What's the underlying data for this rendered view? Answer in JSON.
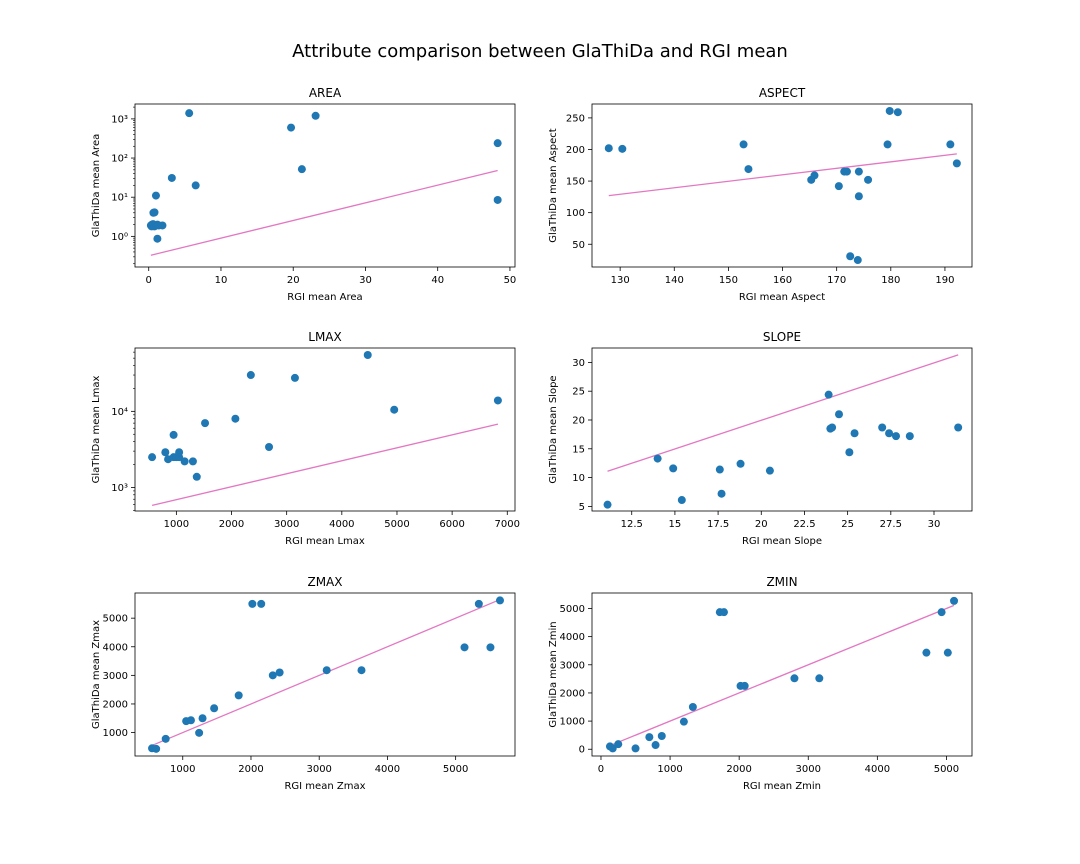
{
  "figure": {
    "title": "Attribute comparison between GlaThiDa and RGI mean"
  },
  "colors": {
    "points": "#1f77b4",
    "line": "#e377c2",
    "axes": "#000000"
  },
  "chart_data": [
    {
      "type": "scatter",
      "title": "AREA",
      "xlabel": "RGI mean Area",
      "ylabel": "GlaThiDa mean Area",
      "xscale": "linear",
      "yscale": "log",
      "xlim": [
        -1.9,
        50.7
      ],
      "ylim": [
        0.165,
        2400
      ],
      "xticks": [
        0,
        10,
        20,
        30,
        40,
        50
      ],
      "yticks": [
        1,
        10,
        100,
        1000
      ],
      "yticklabels": [
        "10⁰",
        "10¹",
        "10²",
        "10³"
      ],
      "points": [
        [
          0.3,
          1.9
        ],
        [
          0.4,
          1.8
        ],
        [
          0.45,
          2.0
        ],
        [
          0.55,
          1.95
        ],
        [
          0.6,
          2.05
        ],
        [
          0.8,
          1.8
        ],
        [
          1.0,
          1.9
        ],
        [
          1.2,
          2.0
        ],
        [
          1.4,
          1.9
        ],
        [
          1.9,
          1.9
        ],
        [
          0.65,
          4.0
        ],
        [
          0.8,
          4.1
        ],
        [
          1.0,
          11.0
        ],
        [
          1.2,
          0.87
        ],
        [
          3.2,
          31
        ],
        [
          5.6,
          1400
        ],
        [
          6.5,
          20
        ],
        [
          19.7,
          600
        ],
        [
          21.2,
          52
        ],
        [
          23.1,
          1200
        ],
        [
          48.3,
          240
        ],
        [
          48.3,
          8.5
        ]
      ],
      "line": [
        [
          0.3,
          0.33
        ],
        [
          48.3,
          48
        ]
      ]
    },
    {
      "type": "scatter",
      "title": "ASPECT",
      "xlabel": "RGI mean Aspect",
      "ylabel": "GlaThiDa mean Aspect",
      "xscale": "linear",
      "yscale": "linear",
      "xlim": [
        124.8,
        195.0
      ],
      "ylim": [
        14,
        272
      ],
      "xticks": [
        130,
        140,
        150,
        160,
        170,
        180,
        190
      ],
      "yticks": [
        50,
        100,
        150,
        200,
        250
      ],
      "points": [
        [
          127.9,
          202
        ],
        [
          130.4,
          201
        ],
        [
          152.8,
          208
        ],
        [
          153.7,
          169
        ],
        [
          165.3,
          152
        ],
        [
          165.9,
          159
        ],
        [
          170.4,
          142
        ],
        [
          171.4,
          165
        ],
        [
          171.9,
          165
        ],
        [
          172.5,
          31
        ],
        [
          173.9,
          25
        ],
        [
          174.1,
          165
        ],
        [
          174.1,
          126
        ],
        [
          175.8,
          152
        ],
        [
          179.4,
          208
        ],
        [
          179.8,
          261
        ],
        [
          181.3,
          259
        ],
        [
          191.0,
          208
        ],
        [
          192.2,
          178
        ]
      ],
      "line": [
        [
          127.9,
          127
        ],
        [
          192.2,
          193
        ]
      ]
    },
    {
      "type": "scatter",
      "title": "LMAX",
      "xlabel": "RGI mean Lmax",
      "ylabel": "GlaThiDa mean Lmax",
      "xscale": "linear",
      "yscale": "log",
      "xlim": [
        250,
        7140
      ],
      "ylim": [
        490,
        68000
      ],
      "xticks": [
        1000,
        2000,
        3000,
        4000,
        5000,
        6000,
        7000
      ],
      "yticks": [
        1000,
        10000
      ],
      "yticklabels": [
        "10³",
        "10⁴"
      ],
      "points": [
        [
          560,
          2500
        ],
        [
          800,
          2900
        ],
        [
          850,
          2350
        ],
        [
          950,
          2500
        ],
        [
          1000,
          2500
        ],
        [
          1050,
          2500
        ],
        [
          950,
          4900
        ],
        [
          1050,
          2900
        ],
        [
          1150,
          2200
        ],
        [
          1300,
          2200
        ],
        [
          1370,
          1380
        ],
        [
          1520,
          7000
        ],
        [
          2070,
          8000
        ],
        [
          2350,
          30000
        ],
        [
          2680,
          3400
        ],
        [
          3150,
          27500
        ],
        [
          4470,
          55000
        ],
        [
          4950,
          10500
        ],
        [
          6830,
          13900
        ]
      ],
      "line": [
        [
          560,
          580
        ],
        [
          6830,
          6800
        ]
      ]
    },
    {
      "type": "scatter",
      "title": "SLOPE",
      "xlabel": "RGI mean Slope",
      "ylabel": "GlaThiDa mean Slope",
      "xscale": "linear",
      "yscale": "linear",
      "xlim": [
        10.2,
        32.2
      ],
      "ylim": [
        4.2,
        32.5
      ],
      "xticks": [
        12.5,
        15.0,
        17.5,
        20.0,
        22.5,
        25.0,
        27.5,
        30.0
      ],
      "yticks": [
        5,
        10,
        15,
        20,
        25,
        30
      ],
      "points": [
        [
          11.1,
          5.3
        ],
        [
          14.0,
          13.3
        ],
        [
          14.9,
          11.6
        ],
        [
          15.4,
          6.1
        ],
        [
          17.6,
          11.4
        ],
        [
          17.7,
          7.2
        ],
        [
          18.8,
          12.4
        ],
        [
          20.5,
          11.2
        ],
        [
          23.9,
          24.4
        ],
        [
          24.0,
          18.5
        ],
        [
          24.1,
          18.7
        ],
        [
          24.5,
          21.0
        ],
        [
          25.1,
          14.4
        ],
        [
          25.4,
          17.7
        ],
        [
          27.0,
          18.7
        ],
        [
          27.4,
          17.7
        ],
        [
          27.8,
          17.2
        ],
        [
          28.6,
          17.2
        ],
        [
          31.4,
          18.7
        ]
      ],
      "line": [
        [
          11.1,
          11.1
        ],
        [
          31.4,
          31.3
        ]
      ]
    },
    {
      "type": "scatter",
      "title": "ZMAX",
      "xlabel": "RGI mean Zmax",
      "ylabel": "GlaThiDa mean Zmax",
      "xscale": "linear",
      "yscale": "linear",
      "xlim": [
        300,
        5870
      ],
      "ylim": [
        180,
        5880
      ],
      "xticks": [
        1000,
        2000,
        3000,
        4000,
        5000
      ],
      "yticks": [
        1000,
        2000,
        3000,
        4000,
        5000
      ],
      "points": [
        [
          550,
          450
        ],
        [
          610,
          430
        ],
        [
          750,
          780
        ],
        [
          1050,
          1400
        ],
        [
          1120,
          1430
        ],
        [
          1240,
          990
        ],
        [
          1290,
          1500
        ],
        [
          1460,
          1850
        ],
        [
          1820,
          2300
        ],
        [
          2020,
          5500
        ],
        [
          2150,
          5500
        ],
        [
          2320,
          3000
        ],
        [
          2420,
          3100
        ],
        [
          3110,
          3180
        ],
        [
          3620,
          3180
        ],
        [
          5130,
          3980
        ],
        [
          5340,
          5500
        ],
        [
          5510,
          3980
        ],
        [
          5650,
          5620
        ]
      ],
      "line": [
        [
          550,
          550
        ],
        [
          5650,
          5650
        ]
      ]
    },
    {
      "type": "scatter",
      "title": "ZMIN",
      "xlabel": "RGI mean Zmin",
      "ylabel": "GlaThiDa mean Zmin",
      "xscale": "linear",
      "yscale": "linear",
      "xlim": [
        -130,
        5370
      ],
      "ylim": [
        -240,
        5550
      ],
      "xticks": [
        0,
        1000,
        2000,
        3000,
        4000,
        5000
      ],
      "yticks": [
        0,
        1000,
        2000,
        3000,
        4000,
        5000
      ],
      "points": [
        [
          130,
          100
        ],
        [
          170,
          30
        ],
        [
          250,
          180
        ],
        [
          500,
          30
        ],
        [
          700,
          430
        ],
        [
          790,
          150
        ],
        [
          880,
          470
        ],
        [
          1200,
          980
        ],
        [
          1330,
          1500
        ],
        [
          1720,
          4870
        ],
        [
          1780,
          4870
        ],
        [
          2020,
          2250
        ],
        [
          2080,
          2250
        ],
        [
          2800,
          2520
        ],
        [
          3160,
          2520
        ],
        [
          4710,
          3430
        ],
        [
          4930,
          4870
        ],
        [
          5020,
          3430
        ],
        [
          5110,
          5270
        ]
      ],
      "line": [
        [
          130,
          130
        ],
        [
          5110,
          5110
        ]
      ]
    }
  ]
}
